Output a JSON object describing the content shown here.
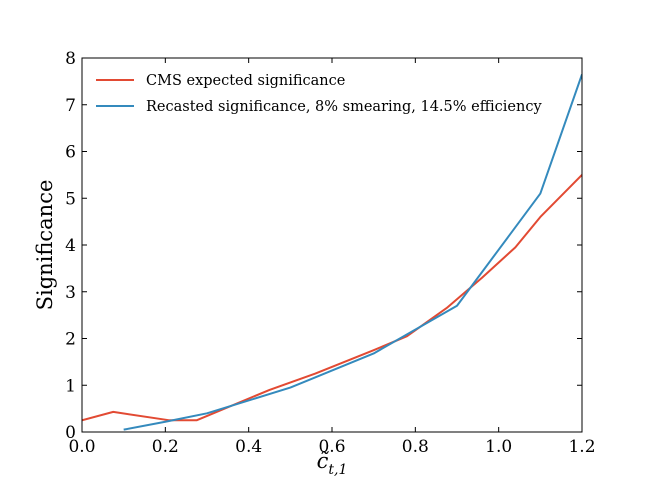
{
  "chart_data": {
    "type": "line",
    "title": "",
    "xlabel": "c̃",
    "xlabel_subscript": "t,1",
    "ylabel": "Significance",
    "xlim": [
      0.0,
      1.2
    ],
    "ylim": [
      0,
      8
    ],
    "xticks": [
      0.0,
      0.2,
      0.4,
      0.6,
      0.8,
      1.0,
      1.2
    ],
    "xtick_labels": [
      "0.0",
      "0.2",
      "0.4",
      "0.6",
      "0.8",
      "1.0",
      "1.2"
    ],
    "yticks": [
      0,
      1,
      2,
      3,
      4,
      5,
      6,
      7,
      8
    ],
    "ytick_labels": [
      "0",
      "1",
      "2",
      "3",
      "4",
      "5",
      "6",
      "7",
      "8"
    ],
    "grid": false,
    "legend_position": "top-left",
    "series": [
      {
        "name": "CMS expected significance",
        "color": "#e24a33",
        "x": [
          0.0,
          0.075,
          0.21,
          0.275,
          0.45,
          0.56,
          0.7,
          0.78,
          0.875,
          0.96,
          1.04,
          1.1,
          1.2
        ],
        "y": [
          0.25,
          0.43,
          0.25,
          0.25,
          0.9,
          1.25,
          1.75,
          2.05,
          2.65,
          3.3,
          3.95,
          4.6,
          5.5
        ]
      },
      {
        "name": "Recasted significance, 8% smearing, 14.5% efficiency",
        "color": "#348abd",
        "x": [
          0.1,
          0.2,
          0.3,
          0.5,
          0.7,
          0.9,
          1.0,
          1.1,
          1.2
        ],
        "y": [
          0.05,
          0.22,
          0.4,
          0.95,
          1.68,
          2.7,
          3.9,
          5.1,
          7.65
        ]
      }
    ]
  }
}
